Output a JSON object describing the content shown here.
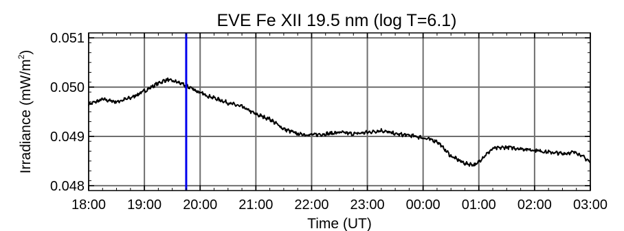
{
  "chart_data": {
    "type": "line",
    "title": "EVE Fe XII 19.5 nm (log T=6.1)",
    "xlabel": "Time (UT)",
    "ylabel_text": "Irradiance (mW/m",
    "ylabel_sup": "2",
    "ylabel_close": ")",
    "ylim": [
      0.0479,
      0.0511
    ],
    "xlim": [
      0,
      9
    ],
    "grid": true,
    "x_ticks": [
      {
        "value": 0,
        "label": "18:00"
      },
      {
        "value": 1,
        "label": "19:00"
      },
      {
        "value": 2,
        "label": "20:00"
      },
      {
        "value": 3,
        "label": "21:00"
      },
      {
        "value": 4,
        "label": "22:00"
      },
      {
        "value": 5,
        "label": "23:00"
      },
      {
        "value": 6,
        "label": "00:00"
      },
      {
        "value": 7,
        "label": "01:00"
      },
      {
        "value": 8,
        "label": "02:00"
      },
      {
        "value": 9,
        "label": "03:00"
      }
    ],
    "y_ticks": [
      {
        "value": 0.048,
        "label": "0.048"
      },
      {
        "value": 0.049,
        "label": "0.049"
      },
      {
        "value": 0.05,
        "label": "0.050"
      },
      {
        "value": 0.051,
        "label": "0.051"
      }
    ],
    "marker_line": {
      "x": 1.75,
      "color": "#0000ee"
    },
    "series": [
      {
        "color": "#000000",
        "x": [
          0.0,
          0.25,
          0.5,
          0.75,
          1.0,
          1.25,
          1.4,
          1.6,
          1.75,
          1.85,
          2.0,
          2.2,
          2.5,
          2.75,
          3.0,
          3.25,
          3.5,
          3.75,
          4.0,
          4.25,
          4.5,
          4.75,
          5.0,
          5.25,
          5.5,
          5.75,
          6.0,
          6.25,
          6.5,
          6.75,
          6.95,
          7.05,
          7.25,
          7.5,
          7.75,
          8.0,
          8.25,
          8.5,
          8.75,
          9.0
        ],
        "y": [
          0.04965,
          0.04975,
          0.0497,
          0.04978,
          0.04992,
          0.05008,
          0.05015,
          0.0501,
          0.05002,
          0.04998,
          0.04988,
          0.0498,
          0.04968,
          0.0496,
          0.04945,
          0.04935,
          0.04915,
          0.04905,
          0.04903,
          0.04905,
          0.04908,
          0.04905,
          0.04908,
          0.04912,
          0.04905,
          0.04902,
          0.04897,
          0.0489,
          0.0486,
          0.04845,
          0.04842,
          0.04855,
          0.04875,
          0.04878,
          0.04875,
          0.04872,
          0.04868,
          0.04865,
          0.04868,
          0.04848
        ]
      }
    ]
  }
}
